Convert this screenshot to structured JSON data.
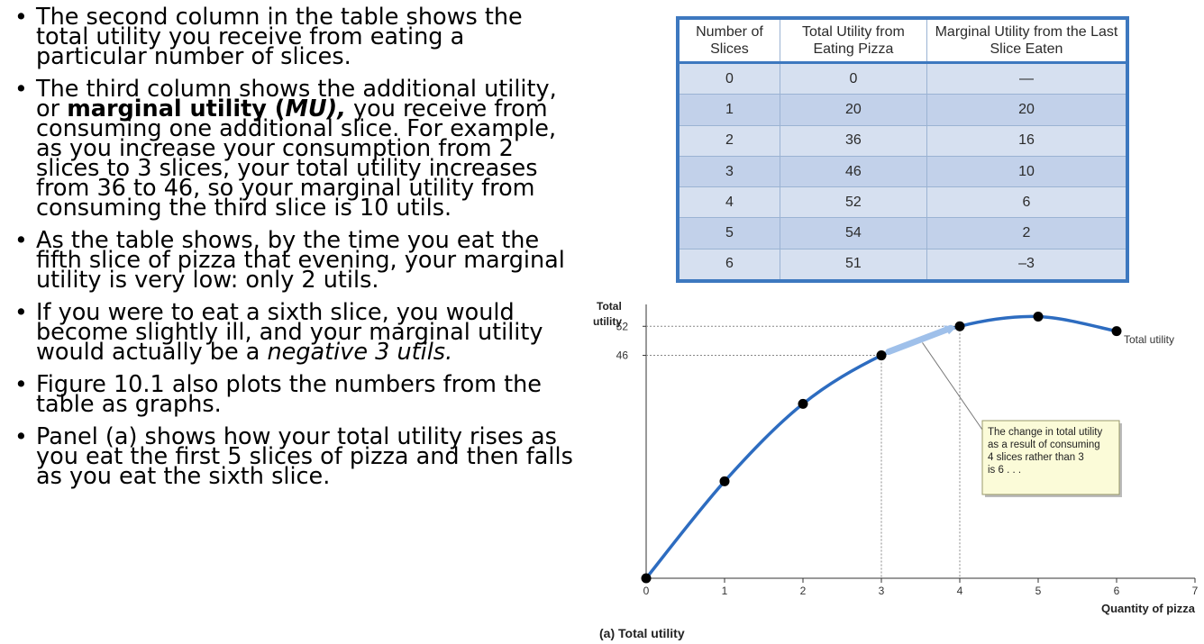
{
  "bullets": {
    "b1": "The second column in the table shows the total utility you receive from eating a particular number of slices.",
    "b2_pre": "The third column shows the additional utility, or ",
    "b2_term": "marginal utility (",
    "b2_abbr": "MU),",
    "b2_post": " you receive from consuming one additional slice. For example, as you increase your consumption from 2 slices to 3 slices, your total utility increases from 36 to 46, so your marginal utility from consuming the third slice is 10 utils.",
    "b3": "As the table shows, by the time you eat the fifth slice of pizza that evening, your marginal utility is very low: only 2 utils.",
    "b4_pre": "If you were to eat a sixth slice, you would become slightly ill, and your marginal utility would actually be a ",
    "b4_em": "negative 3 utils.",
    "b5": "Figure 10.1 also plots the numbers from the table as graphs.",
    "b6": "Panel (a) shows how your total utility rises as you eat the first 5 slices of pizza and then falls as you eat the sixth slice."
  },
  "table": {
    "headers": [
      "Number of Slices",
      "Total Utility from Eating Pizza",
      "Marginal Utility from the Last Slice Eaten"
    ],
    "rows": [
      [
        "0",
        "0",
        "—"
      ],
      [
        "1",
        "20",
        "20"
      ],
      [
        "2",
        "36",
        "16"
      ],
      [
        "3",
        "46",
        "10"
      ],
      [
        "4",
        "52",
        "6"
      ],
      [
        "5",
        "54",
        "2"
      ],
      [
        "6",
        "51",
        "–3"
      ]
    ]
  },
  "chart_data": {
    "type": "line",
    "title": "",
    "panel_label": "(a) Total utility",
    "ylabel_line1": "Total",
    "ylabel_line2": "utility",
    "xlabel": "Quantity of pizza",
    "x": [
      0,
      1,
      2,
      3,
      4,
      5,
      6
    ],
    "series": [
      {
        "name": "Total utility",
        "values": [
          0,
          20,
          36,
          46,
          52,
          54,
          51
        ]
      }
    ],
    "x_ticks": [
      "0",
      "1",
      "2",
      "3",
      "4",
      "5",
      "6",
      "7"
    ],
    "y_ticks": [
      {
        "value": 46,
        "label": "46"
      },
      {
        "value": 52,
        "label": "52"
      }
    ],
    "xlim": [
      0,
      7
    ],
    "ylim": [
      0,
      58
    ],
    "callout": "The change in total utility as a result of consuming 4 slices rather than 3 is 6 . . .",
    "callout_lines": [
      "The change in total utility",
      "as a result of consuming",
      "4 slices rather than 3",
      "is 6 . . ."
    ],
    "line_color": "#2d6cc0",
    "point_color": "#000000",
    "callout_bg": "#fbfbd8"
  }
}
